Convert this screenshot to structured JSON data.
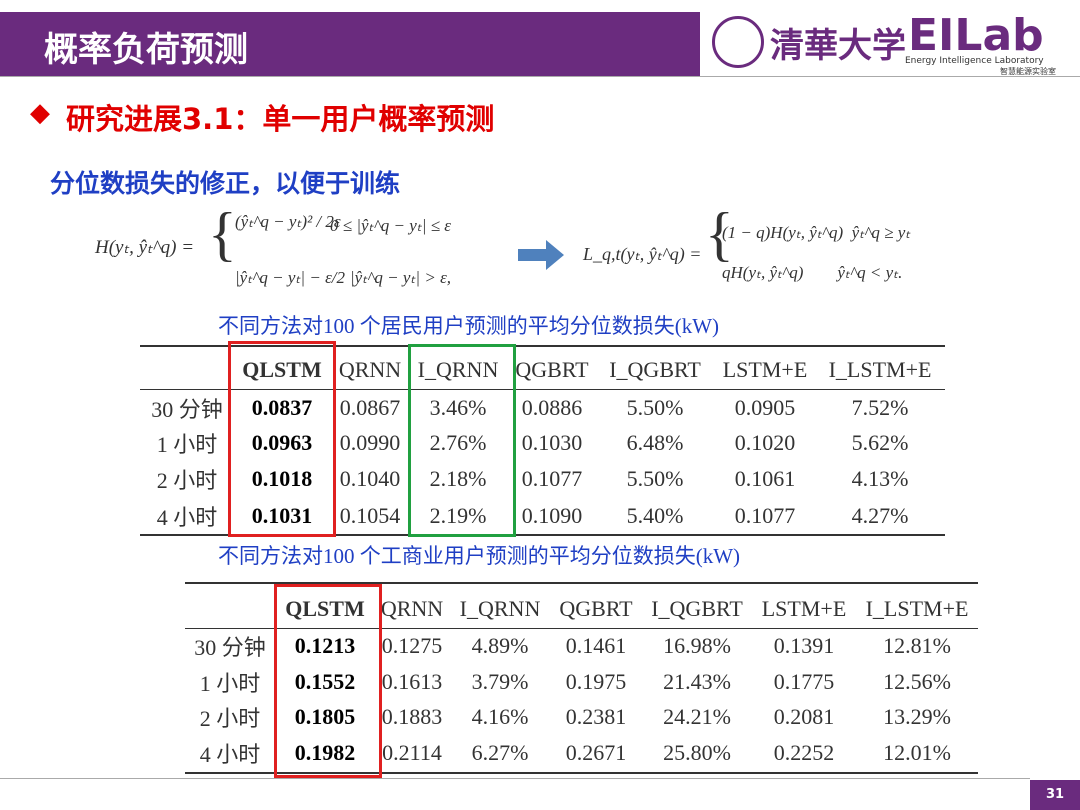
{
  "header": {
    "title": "概率负荷预测",
    "logo_university": "清華大学",
    "logo_lab": "EILab",
    "logo_lab_en": "Energy Intelligence Laboratory",
    "logo_lab_cn": "智慧能源实验室"
  },
  "section": "研究进展3.1：单一用户概率预测",
  "subtitle": "分位数损失的修正，以便于训练",
  "formulas": {
    "huber_lhs": "H(yₜ, ŷₜ^q) =",
    "huber_case1": "(ŷₜ^q − yₜ)² / 2ε",
    "huber_cond1": "0 ≤ |ŷₜ^q − yₜ| ≤ ε",
    "huber_case2": "|ŷₜ^q − yₜ| − ε/2",
    "huber_cond2": "|ŷₜ^q − yₜ| > ε,",
    "loss_lhs": "L_q,t(yₜ, ŷₜ^q) =",
    "loss_case1": "(1 − q)H(yₜ, ŷₜ^q)  ŷₜ^q ≥ yₜ",
    "loss_case2": "qH(yₜ, ŷₜ^q)        ŷₜ^q < yₜ."
  },
  "tables": [
    {
      "caption": "不同方法对100 个居民用户预测的平均分位数损失(kW)",
      "columns": [
        "QLSTM",
        "QRNN",
        "I_QRNN",
        "QGBRT",
        "I_QGBRT",
        "LSTM+E",
        "I_LSTM+E"
      ],
      "rows": [
        {
          "label": "30 分钟",
          "cells": [
            "0.0837",
            "0.0867",
            "3.46%",
            "0.0886",
            "5.50%",
            "0.0905",
            "7.52%"
          ]
        },
        {
          "label": "1 小时",
          "cells": [
            "0.0963",
            "0.0990",
            "2.76%",
            "0.1030",
            "6.48%",
            "0.1020",
            "5.62%"
          ]
        },
        {
          "label": "2 小时",
          "cells": [
            "0.1018",
            "0.1040",
            "2.18%",
            "0.1077",
            "5.50%",
            "0.1061",
            "4.13%"
          ]
        },
        {
          "label": "4 小时",
          "cells": [
            "0.1031",
            "0.1054",
            "2.19%",
            "0.1090",
            "5.40%",
            "0.1077",
            "4.27%"
          ]
        }
      ]
    },
    {
      "caption": "不同方法对100 个工商业用户预测的平均分位数损失(kW)",
      "columns": [
        "QLSTM",
        "QRNN",
        "I_QRNN",
        "QGBRT",
        "I_QGBRT",
        "LSTM+E",
        "I_LSTM+E"
      ],
      "rows": [
        {
          "label": "30 分钟",
          "cells": [
            "0.1213",
            "0.1275",
            "4.89%",
            "0.1461",
            "16.98%",
            "0.1391",
            "12.81%"
          ]
        },
        {
          "label": "1 小时",
          "cells": [
            "0.1552",
            "0.1613",
            "3.79%",
            "0.1975",
            "21.43%",
            "0.1775",
            "12.56%"
          ]
        },
        {
          "label": "2 小时",
          "cells": [
            "0.1805",
            "0.1883",
            "4.16%",
            "0.2381",
            "24.21%",
            "0.2081",
            "13.29%"
          ]
        },
        {
          "label": "4 小时",
          "cells": [
            "0.1982",
            "0.2114",
            "6.27%",
            "0.2671",
            "25.80%",
            "0.2252",
            "12.01%"
          ]
        }
      ]
    }
  ],
  "page_number": "31"
}
